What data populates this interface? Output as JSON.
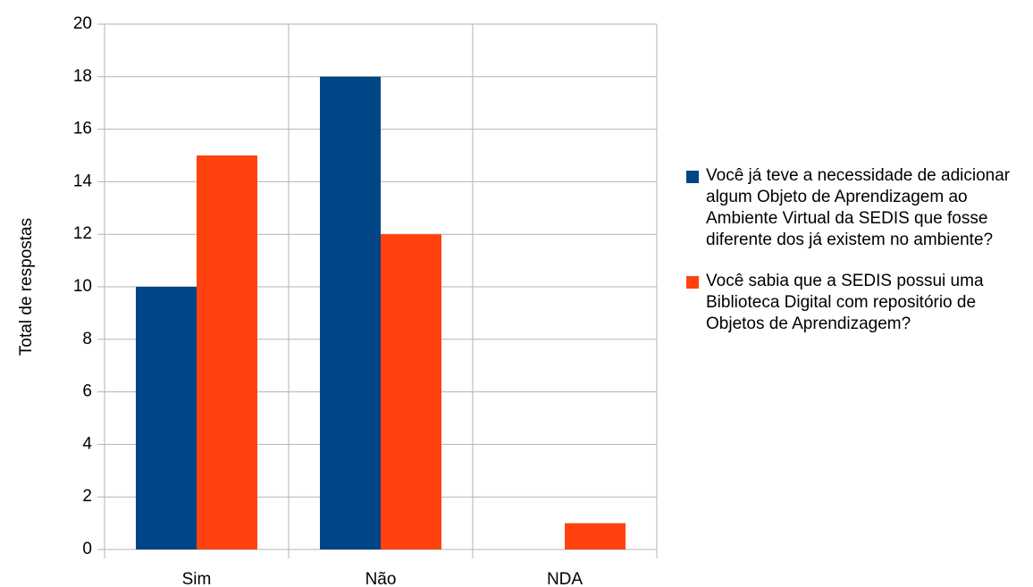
{
  "chart_data": {
    "type": "bar",
    "categories": [
      "Sim",
      "Não",
      "NDA"
    ],
    "series": [
      {
        "name": "Você já teve a necessidade de adicionar algum Objeto de Aprendizagem ao Ambiente Virtual da  SEDIS que fosse diferente dos já existem no ambiente?",
        "color": "#004586",
        "values": [
          10,
          18,
          0
        ]
      },
      {
        "name": "Você sabia que a SEDIS possui uma Biblioteca Digital com repositório de Objetos de Aprendizagem?",
        "color": "#ff420e",
        "values": [
          15,
          12,
          1
        ]
      }
    ],
    "ylabel": "Total de respostas",
    "ylim": [
      0,
      20
    ],
    "yticks": [
      0,
      2,
      4,
      6,
      8,
      10,
      12,
      14,
      16,
      18,
      20
    ],
    "grid": true,
    "legend": "right"
  }
}
